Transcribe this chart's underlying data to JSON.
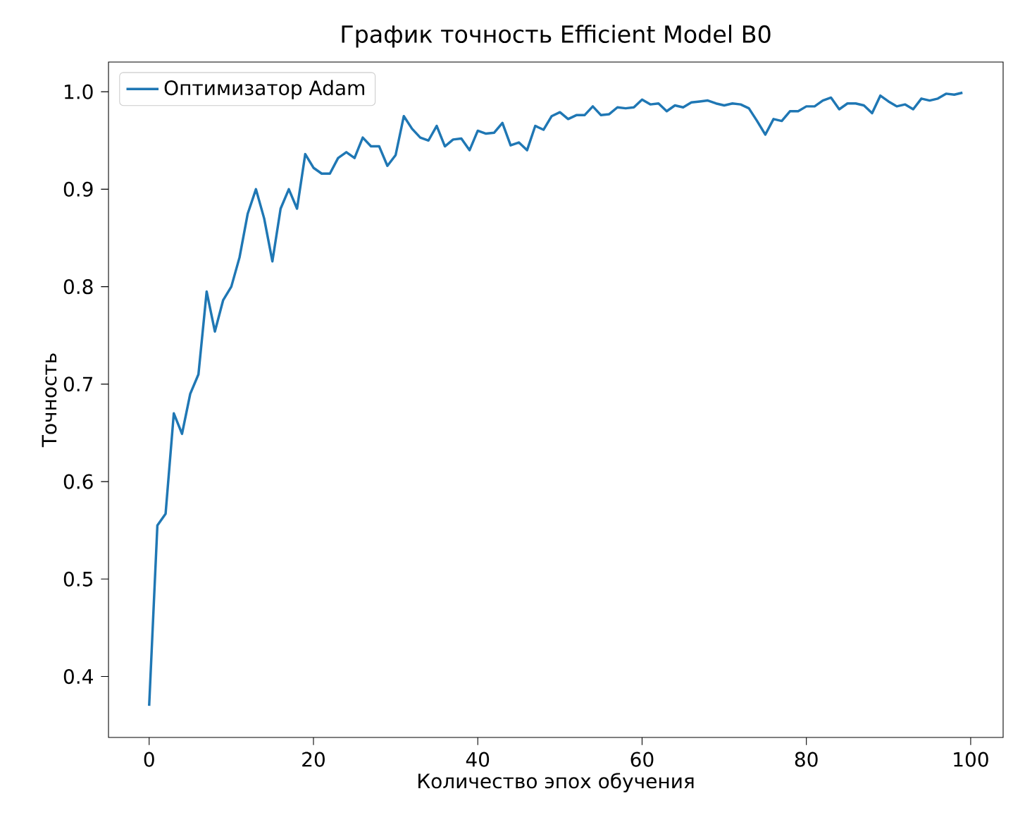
{
  "chart_data": {
    "type": "line",
    "title": "График точность Efficient Model B0",
    "xlabel": "Количество эпох обучения",
    "ylabel": "Точность",
    "x": [
      0,
      1,
      2,
      3,
      4,
      5,
      6,
      7,
      8,
      9,
      10,
      11,
      12,
      13,
      14,
      15,
      16,
      17,
      18,
      19,
      20,
      21,
      22,
      23,
      24,
      25,
      26,
      27,
      28,
      29,
      30,
      31,
      32,
      33,
      34,
      35,
      36,
      37,
      38,
      39,
      40,
      41,
      42,
      43,
      44,
      45,
      46,
      47,
      48,
      49,
      50,
      51,
      52,
      53,
      54,
      55,
      56,
      57,
      58,
      59,
      60,
      61,
      62,
      63,
      64,
      65,
      66,
      67,
      68,
      69,
      70,
      71,
      72,
      73,
      74,
      75,
      76,
      77,
      78,
      79,
      80,
      81,
      82,
      83,
      84,
      85,
      86,
      87,
      88,
      89,
      90,
      91,
      92,
      93,
      94,
      95,
      96,
      97,
      98,
      99
    ],
    "series": [
      {
        "name": "Оптимизатор Adam",
        "color": "#1f77b4",
        "values": [
          0.37,
          0.555,
          0.567,
          0.67,
          0.649,
          0.69,
          0.71,
          0.795,
          0.754,
          0.786,
          0.8,
          0.83,
          0.875,
          0.9,
          0.87,
          0.826,
          0.88,
          0.9,
          0.88,
          0.936,
          0.922,
          0.916,
          0.916,
          0.932,
          0.938,
          0.932,
          0.953,
          0.944,
          0.944,
          0.924,
          0.935,
          0.975,
          0.962,
          0.953,
          0.95,
          0.965,
          0.944,
          0.951,
          0.952,
          0.94,
          0.96,
          0.957,
          0.958,
          0.968,
          0.945,
          0.948,
          0.94,
          0.965,
          0.961,
          0.975,
          0.979,
          0.972,
          0.976,
          0.976,
          0.985,
          0.976,
          0.977,
          0.984,
          0.983,
          0.984,
          0.992,
          0.987,
          0.988,
          0.98,
          0.986,
          0.984,
          0.989,
          0.99,
          0.991,
          0.988,
          0.986,
          0.988,
          0.987,
          0.983,
          0.97,
          0.956,
          0.972,
          0.97,
          0.98,
          0.98,
          0.985,
          0.985,
          0.991,
          0.994,
          0.982,
          0.988,
          0.988,
          0.986,
          0.978,
          0.996,
          0.99,
          0.985,
          0.987,
          0.982,
          0.993,
          0.991,
          0.993,
          0.998,
          0.997,
          0.999
        ]
      }
    ],
    "xlim": [
      -4.95,
      103.95
    ],
    "ylim": [
      0.3375,
      1.0305
    ],
    "xticks": [
      0,
      20,
      40,
      60,
      80,
      100
    ],
    "yticks": [
      0.4,
      0.5,
      0.6,
      0.7,
      0.8,
      0.9,
      {
        "value": 1,
        "label": "1.0"
      }
    ],
    "legend": "top left",
    "grid": false,
    "marker": "none",
    "line_style": "solid"
  }
}
